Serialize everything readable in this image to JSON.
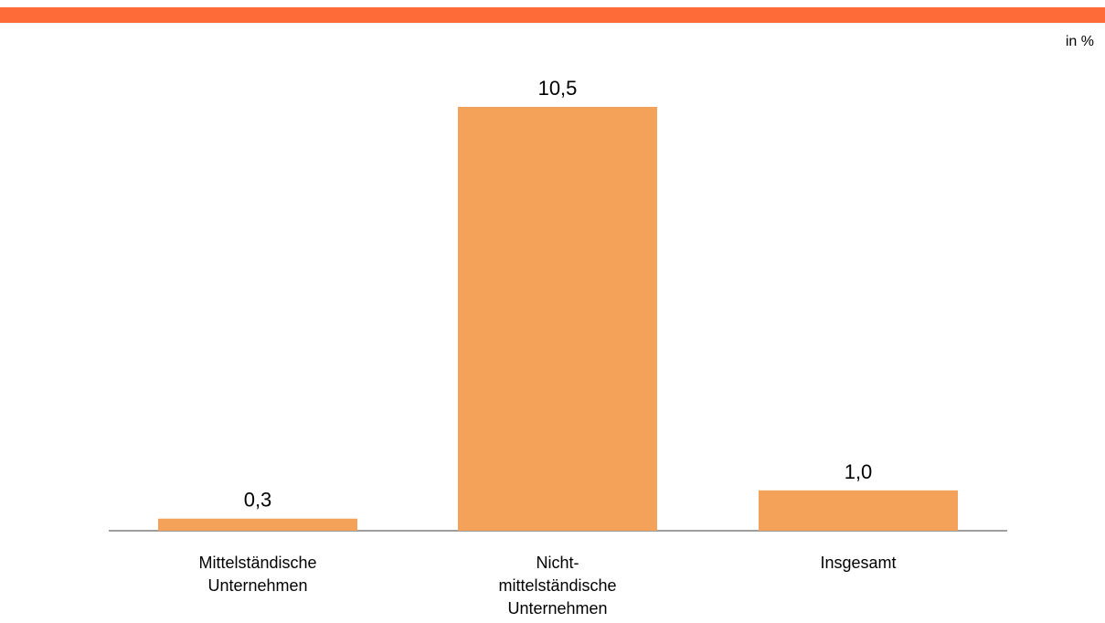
{
  "colors": {
    "accent_bar": "#ff6a39",
    "bar": "#f4a259",
    "axis": "#7f7f7f"
  },
  "unit": "in %",
  "chart_data": {
    "type": "bar",
    "categories": [
      [
        "Mittelständische",
        "Unternehmen"
      ],
      [
        "Nicht-",
        "mittelständische",
        "Unternehmen"
      ],
      [
        "Insgesamt"
      ]
    ],
    "values": [
      0.3,
      10.5,
      1.0
    ],
    "value_labels": [
      "0,3",
      "10,5",
      "1,0"
    ],
    "ylim": [
      0,
      11.5
    ],
    "grid": false,
    "legend": "none"
  }
}
